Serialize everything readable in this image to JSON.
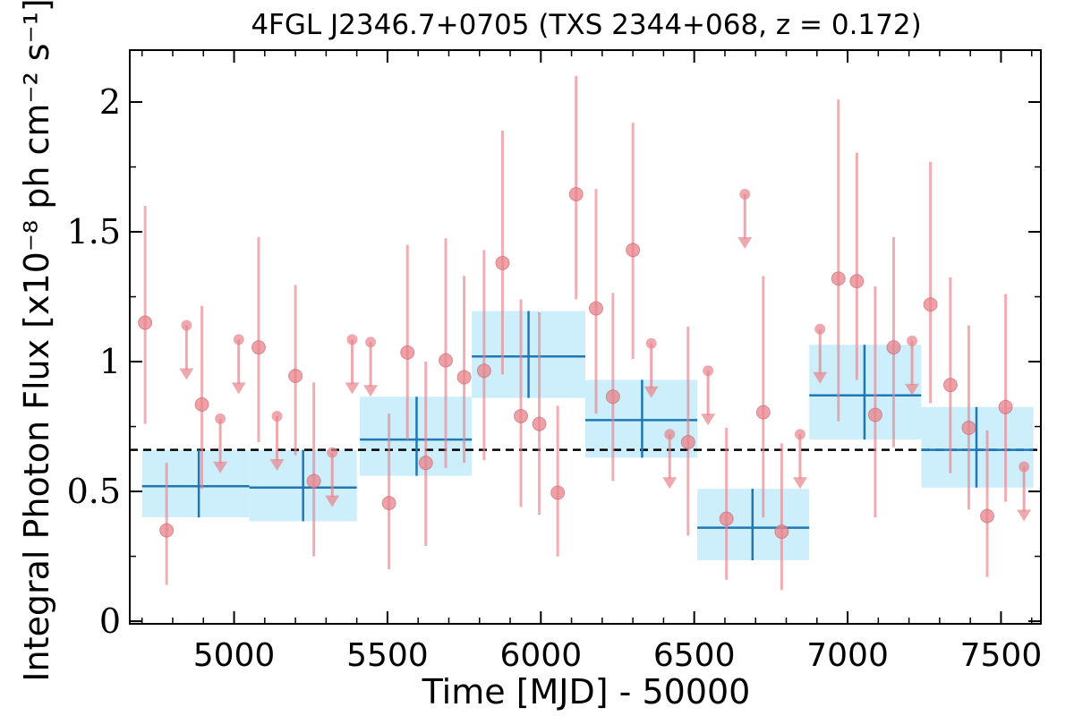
{
  "chart_data": {
    "type": "scatter",
    "title": "4FGL J2346.7+0705 (TXS 2344+068, z = 0.172)",
    "xlabel": "Time [MJD] - 50000",
    "ylabel": "Integral Photon Flux [x10⁻⁸ ph cm⁻² s⁻¹]",
    "xlim": [
      4660,
      7630
    ],
    "ylim": [
      -0.01,
      2.2
    ],
    "xticks": [
      5000,
      5500,
      6000,
      6500,
      7000,
      7500
    ],
    "xtick_labels": [
      "5000",
      "5500",
      "6000",
      "6500",
      "7000",
      "7500"
    ],
    "yticks": [
      0,
      0.5,
      1,
      1.5,
      2
    ],
    "ytick_labels": [
      "0",
      "0.5",
      "1",
      "1.5",
      "2"
    ],
    "grid": false,
    "reference_line": {
      "value": 0.66,
      "style": "dashed",
      "color": "#000000"
    },
    "colors": {
      "short_bins": "#e8838a",
      "long_bins": "#1f77b4",
      "long_bins_fill": "#cdeefb"
    },
    "series": [
      {
        "kind": "long-bins",
        "points": [
          {
            "x": 4885,
            "xlo": 4700,
            "xhi": 5050,
            "y": 0.52,
            "ylo": 0.4,
            "yhi": 0.66,
            "fill_lo": 0.4,
            "fill_hi": 0.66
          },
          {
            "x": 5225,
            "xlo": 5050,
            "xhi": 5400,
            "y": 0.515,
            "ylo": 0.385,
            "yhi": 0.66,
            "fill_lo": 0.385,
            "fill_hi": 0.66
          },
          {
            "x": 5595,
            "xlo": 5410,
            "xhi": 5775,
            "y": 0.7,
            "ylo": 0.56,
            "yhi": 0.865,
            "fill_lo": 0.56,
            "fill_hi": 0.865
          },
          {
            "x": 5960,
            "xlo": 5775,
            "xhi": 6145,
            "y": 1.02,
            "ylo": 0.86,
            "yhi": 1.195,
            "fill_lo": 0.86,
            "fill_hi": 1.195
          },
          {
            "x": 6330,
            "xlo": 6145,
            "xhi": 6510,
            "y": 0.775,
            "ylo": 0.63,
            "yhi": 0.93,
            "fill_lo": 0.63,
            "fill_hi": 0.93
          },
          {
            "x": 6690,
            "xlo": 6510,
            "xhi": 6875,
            "y": 0.36,
            "ylo": 0.235,
            "yhi": 0.51,
            "fill_lo": 0.235,
            "fill_hi": 0.51
          },
          {
            "x": 7055,
            "xlo": 6875,
            "xhi": 7240,
            "y": 0.87,
            "ylo": 0.7,
            "yhi": 1.065,
            "fill_lo": 0.7,
            "fill_hi": 1.065
          },
          {
            "x": 7420,
            "xlo": 7240,
            "xhi": 7605,
            "y": 0.66,
            "ylo": 0.515,
            "yhi": 0.825,
            "fill_lo": 0.515,
            "fill_hi": 0.825
          }
        ]
      },
      {
        "kind": "short-bins",
        "points": [
          {
            "x": 4710,
            "y": 1.15,
            "ylo": 0.76,
            "yhi": 1.6
          },
          {
            "x": 4780,
            "y": 0.35,
            "ylo": 0.14,
            "yhi": 0.61
          },
          {
            "x": 4845,
            "y": 1.14,
            "upper_limit": true
          },
          {
            "x": 4895,
            "y": 0.835,
            "ylo": 0.51,
            "yhi": 1.215
          },
          {
            "x": 4955,
            "y": 0.78,
            "upper_limit": true
          },
          {
            "x": 5015,
            "y": 1.085,
            "upper_limit": true
          },
          {
            "x": 5080,
            "y": 1.055,
            "ylo": 0.69,
            "yhi": 1.48
          },
          {
            "x": 5140,
            "y": 0.79,
            "upper_limit": true
          },
          {
            "x": 5200,
            "y": 0.945,
            "ylo": 0.64,
            "yhi": 1.295
          },
          {
            "x": 5260,
            "y": 0.54,
            "ylo": 0.25,
            "yhi": 0.92
          },
          {
            "x": 5320,
            "y": 0.65,
            "upper_limit": true
          },
          {
            "x": 5385,
            "y": 1.085,
            "upper_limit": true
          },
          {
            "x": 5445,
            "y": 1.075,
            "upper_limit": true
          },
          {
            "x": 5505,
            "y": 0.455,
            "ylo": 0.2,
            "yhi": 0.8
          },
          {
            "x": 5565,
            "y": 1.035,
            "ylo": 0.7,
            "yhi": 1.45
          },
          {
            "x": 5625,
            "y": 0.61,
            "ylo": 0.29,
            "yhi": 1.0
          },
          {
            "x": 5690,
            "y": 1.005,
            "ylo": 0.59,
            "yhi": 1.475
          },
          {
            "x": 5750,
            "y": 0.94,
            "ylo": 0.61,
            "yhi": 1.33
          },
          {
            "x": 5815,
            "y": 0.965,
            "ylo": 0.62,
            "yhi": 1.43
          },
          {
            "x": 5875,
            "y": 1.38,
            "ylo": 0.95,
            "yhi": 1.89
          },
          {
            "x": 5935,
            "y": 0.79,
            "ylo": 0.44,
            "yhi": 1.24
          },
          {
            "x": 5995,
            "y": 0.76,
            "ylo": 0.41,
            "yhi": 1.19
          },
          {
            "x": 6055,
            "y": 0.495,
            "ylo": 0.25,
            "yhi": 0.83
          },
          {
            "x": 6115,
            "y": 1.645,
            "ylo": 1.24,
            "yhi": 2.1
          },
          {
            "x": 6180,
            "y": 1.205,
            "ylo": 0.8,
            "yhi": 1.665
          },
          {
            "x": 6235,
            "y": 0.865,
            "ylo": 0.54,
            "yhi": 1.265
          },
          {
            "x": 6300,
            "y": 1.43,
            "ylo": 1.01,
            "yhi": 1.92
          },
          {
            "x": 6360,
            "y": 1.07,
            "upper_limit": true
          },
          {
            "x": 6420,
            "y": 0.72,
            "upper_limit": true
          },
          {
            "x": 6480,
            "y": 0.69,
            "ylo": 0.33,
            "yhi": 1.135
          },
          {
            "x": 6545,
            "y": 0.965,
            "upper_limit": true
          },
          {
            "x": 6605,
            "y": 0.395,
            "ylo": 0.16,
            "yhi": 0.745
          },
          {
            "x": 6665,
            "y": 1.645,
            "upper_limit": true
          },
          {
            "x": 6725,
            "y": 0.805,
            "ylo": 0.4,
            "yhi": 1.33
          },
          {
            "x": 6785,
            "y": 0.345,
            "ylo": 0.12,
            "yhi": 0.685
          },
          {
            "x": 6845,
            "y": 0.72,
            "upper_limit": true
          },
          {
            "x": 6910,
            "y": 1.125,
            "upper_limit": true
          },
          {
            "x": 6970,
            "y": 1.32,
            "ylo": 0.77,
            "yhi": 2.01
          },
          {
            "x": 7030,
            "y": 1.31,
            "ylo": 0.93,
            "yhi": 1.805
          },
          {
            "x": 7090,
            "y": 0.795,
            "ylo": 0.4,
            "yhi": 1.29
          },
          {
            "x": 7150,
            "y": 1.055,
            "ylo": 0.67,
            "yhi": 1.48
          },
          {
            "x": 7210,
            "y": 1.08,
            "upper_limit": true
          },
          {
            "x": 7270,
            "y": 1.22,
            "ylo": 0.84,
            "yhi": 1.77
          },
          {
            "x": 7335,
            "y": 0.91,
            "ylo": 0.57,
            "yhi": 1.325
          },
          {
            "x": 7395,
            "y": 0.745,
            "ylo": 0.43,
            "yhi": 1.14
          },
          {
            "x": 7455,
            "y": 0.405,
            "ylo": 0.17,
            "yhi": 0.735
          },
          {
            "x": 7515,
            "y": 0.825,
            "ylo": 0.46,
            "yhi": 1.26
          },
          {
            "x": 7575,
            "y": 0.595,
            "upper_limit": true
          }
        ]
      }
    ]
  }
}
